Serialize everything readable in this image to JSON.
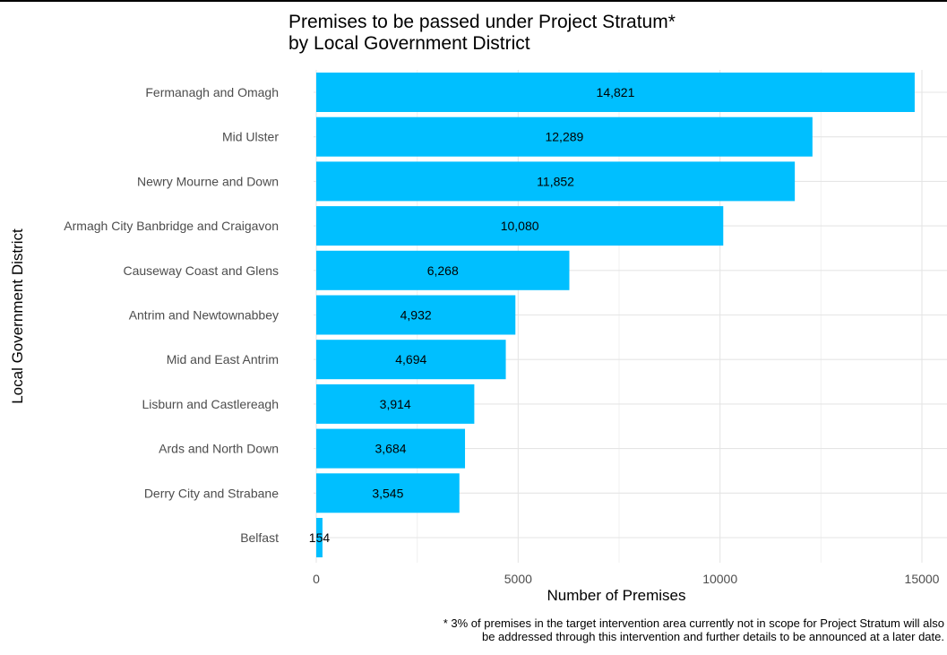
{
  "chart_data": {
    "type": "bar",
    "orientation": "horizontal",
    "title_lines": [
      "Premises to be passed under Project Stratum*",
      "by Local Government District"
    ],
    "xlabel": "Number of Premises",
    "ylabel": "Local Government District",
    "categories": [
      "Fermanagh and Omagh",
      "Mid Ulster",
      "Newry Mourne and Down",
      "Armagh City Banbridge and Craigavon",
      "Causeway Coast and Glens",
      "Antrim and Newtownabbey",
      "Mid and East Antrim",
      "Lisburn and Castlereagh",
      "Ards and North Down",
      "Derry City and Strabane",
      "Belfast"
    ],
    "values": [
      14821,
      12289,
      11852,
      10080,
      6268,
      4932,
      4694,
      3914,
      3684,
      3545,
      154
    ],
    "value_labels": [
      "14,821",
      "12,289",
      "11,852",
      "10,080",
      "6,268",
      "4,932",
      "4,694",
      "3,914",
      "3,684",
      "3,545",
      "154"
    ],
    "xlim": [
      0,
      15000
    ],
    "x_ticks": [
      0,
      5000,
      10000,
      15000
    ],
    "x_tick_labels": [
      "0",
      "5000",
      "10000",
      "15000"
    ],
    "grid": true,
    "bar_color": "#00BFFF",
    "footnote_lines": [
      "* 3% of premises in the target intervention area currently not in scope for Project Stratum will also",
      "be addressed through this intervention and further details to be announced at a later date."
    ]
  }
}
